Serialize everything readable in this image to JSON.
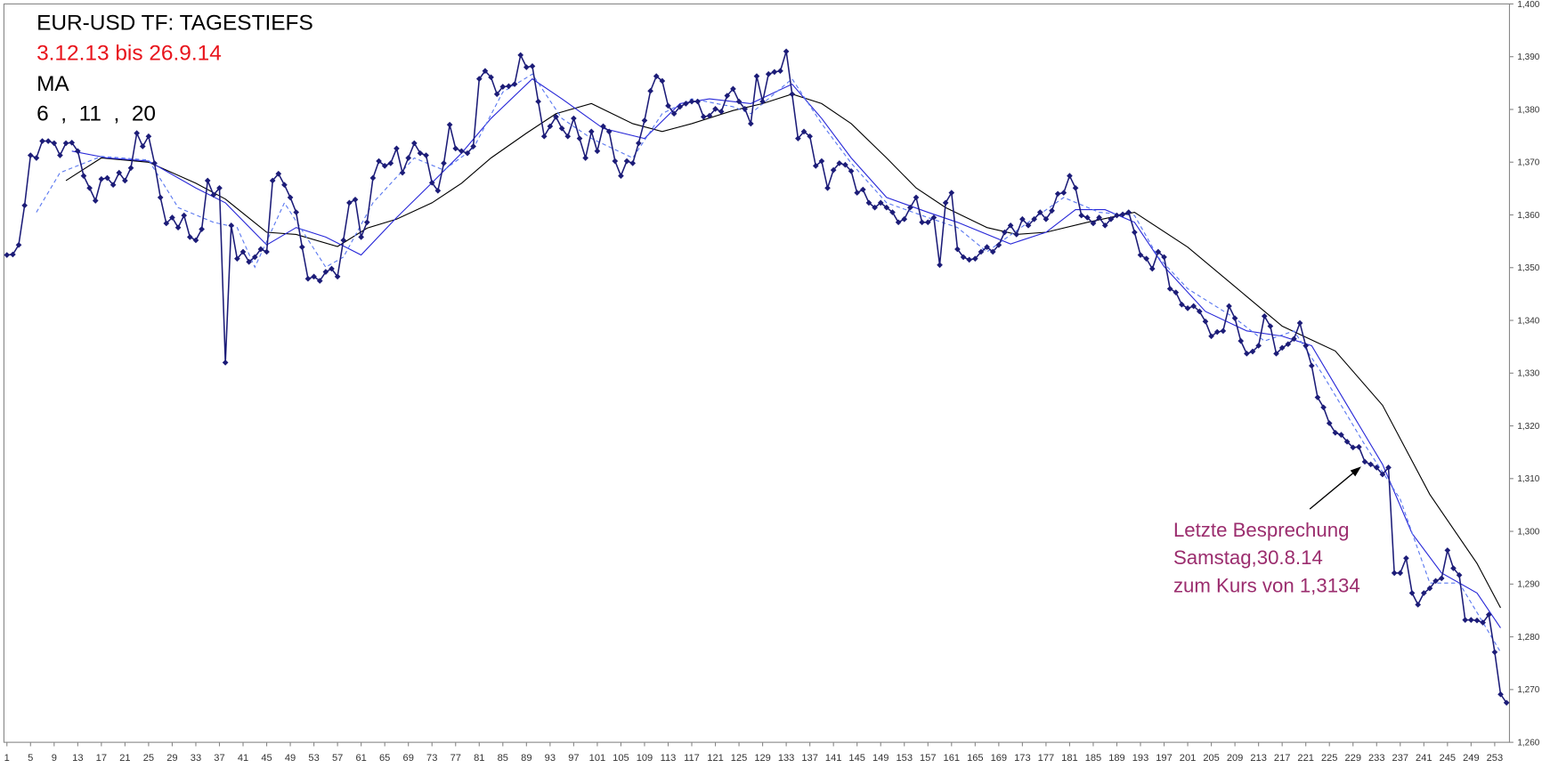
{
  "chart_data": {
    "type": "line",
    "title": "EUR-USD TF: TAGESTIEFS",
    "subtitle": "3.12.13 bis 26.9.14",
    "notes": [
      "MA",
      "6  ,  11  ,  20"
    ],
    "annotation": [
      "Letzte Besprechung",
      "Samstag,30.8.14",
      "zum Kurs von 1,3134"
    ],
    "xlim": [
      0.5,
      255.5
    ],
    "xticks": [
      1,
      5,
      9,
      13,
      17,
      21,
      25,
      29,
      33,
      37,
      41,
      45,
      49,
      53,
      57,
      61,
      65,
      69,
      73,
      77,
      81,
      85,
      89,
      93,
      97,
      101,
      105,
      109,
      113,
      117,
      121,
      125,
      129,
      133,
      137,
      141,
      145,
      149,
      153,
      157,
      161,
      165,
      169,
      173,
      177,
      181,
      185,
      189,
      193,
      197,
      201,
      205,
      209,
      213,
      217,
      221,
      225,
      229,
      233,
      237,
      241,
      245,
      249,
      253
    ],
    "ylim": [
      1.26,
      1.4
    ],
    "yticks": [
      {
        "value": 1.26,
        "label": "1,260"
      },
      {
        "value": 1.27,
        "label": "1,270"
      },
      {
        "value": 1.28,
        "label": "1,280"
      },
      {
        "value": 1.29,
        "label": "1,290"
      },
      {
        "value": 1.3,
        "label": "1,300"
      },
      {
        "value": 1.31,
        "label": "1,310"
      },
      {
        "value": 1.32,
        "label": "1,320"
      },
      {
        "value": 1.33,
        "label": "1,330"
      },
      {
        "value": 1.34,
        "label": "1,340"
      },
      {
        "value": 1.35,
        "label": "1,350"
      },
      {
        "value": 1.36,
        "label": "1,360"
      },
      {
        "value": 1.37,
        "label": "1,370"
      },
      {
        "value": 1.38,
        "label": "1,380"
      },
      {
        "value": 1.39,
        "label": "1,390"
      },
      {
        "value": 1.4,
        "label": "1,400"
      }
    ],
    "series": [
      {
        "color": "#1c1c78",
        "marker": "diamond",
        "style": "solid",
        "x": [
          1,
          2,
          3,
          4,
          5,
          6,
          7,
          8,
          9,
          10,
          11,
          12,
          13,
          14,
          15,
          16,
          17,
          18,
          19,
          20,
          21,
          22,
          23,
          24,
          25,
          26,
          27,
          28,
          29,
          30,
          31,
          32,
          33,
          34,
          35,
          36,
          37,
          38,
          39,
          40,
          41,
          42,
          43,
          44,
          45,
          46,
          47,
          48,
          49,
          50,
          51,
          52,
          53,
          54,
          55,
          56,
          57,
          58,
          59,
          60,
          61,
          62,
          63,
          64,
          65,
          66,
          67,
          68,
          69,
          70,
          71,
          72,
          73,
          74,
          75,
          76,
          77,
          78,
          79,
          80,
          81,
          82,
          83,
          84,
          85,
          86,
          87,
          88,
          89,
          90,
          91,
          92,
          93,
          94,
          95,
          96,
          97,
          98,
          99,
          100,
          101,
          102,
          103,
          104,
          105,
          106,
          107,
          108,
          109,
          110,
          111,
          112,
          113,
          114,
          115,
          116,
          117,
          118,
          119,
          120,
          121,
          122,
          123,
          124,
          125,
          126,
          127,
          128,
          129,
          130,
          131,
          132,
          133,
          134,
          135,
          136,
          137,
          138,
          139,
          140,
          141,
          142,
          143,
          144,
          145,
          146,
          147,
          148,
          149,
          150,
          151,
          152,
          153,
          154,
          155,
          156,
          157,
          158,
          159,
          160,
          161,
          162,
          163,
          164,
          165,
          166,
          167,
          168,
          169,
          170,
          171,
          172,
          173,
          174,
          175,
          176,
          177,
          178,
          179,
          180,
          181,
          182,
          183,
          184,
          185,
          186,
          187,
          188,
          189,
          190,
          191,
          192,
          193,
          194,
          195,
          196,
          197,
          198,
          199,
          200,
          201,
          202,
          203,
          204,
          205,
          206,
          207,
          208,
          209,
          210,
          211,
          212,
          213,
          214,
          215,
          216,
          217,
          218,
          219,
          220,
          221,
          222,
          223,
          224,
          225,
          226,
          227,
          228,
          229,
          230,
          231,
          232,
          233,
          234,
          235,
          236,
          237,
          238,
          239,
          240,
          241,
          242,
          243,
          244,
          245,
          246,
          247,
          248,
          249,
          250,
          251,
          252,
          253,
          254,
          255
        ],
        "values": [
          1.3524,
          1.3525,
          1.3543,
          1.3618,
          1.3713,
          1.3708,
          1.374,
          1.374,
          1.3736,
          1.3713,
          1.3736,
          1.3737,
          1.3721,
          1.3674,
          1.3651,
          1.3627,
          1.3668,
          1.367,
          1.3657,
          1.368,
          1.3665,
          1.3689,
          1.3755,
          1.373,
          1.3749,
          1.3698,
          1.3633,
          1.3584,
          1.3595,
          1.3576,
          1.3599,
          1.3558,
          1.3552,
          1.3573,
          1.3665,
          1.3638,
          1.3651,
          1.332,
          1.358,
          1.3517,
          1.353,
          1.3511,
          1.352,
          1.3535,
          1.353,
          1.3665,
          1.3678,
          1.3657,
          1.3633,
          1.3605,
          1.3539,
          1.3479,
          1.3483,
          1.3475,
          1.3492,
          1.3498,
          1.3483,
          1.3552,
          1.3623,
          1.3629,
          1.3558,
          1.3586,
          1.367,
          1.3702,
          1.3693,
          1.3698,
          1.3726,
          1.368,
          1.3708,
          1.3736,
          1.3717,
          1.3713,
          1.3661,
          1.3646,
          1.3698,
          1.3771,
          1.3726,
          1.3721,
          1.3717,
          1.373,
          1.3858,
          1.3873,
          1.3861,
          1.3829,
          1.3843,
          1.3844,
          1.3848,
          1.3903,
          1.388,
          1.3882,
          1.3815,
          1.3749,
          1.3768,
          1.3786,
          1.3764,
          1.3749,
          1.3783,
          1.3745,
          1.3708,
          1.3758,
          1.3721,
          1.3768,
          1.3758,
          1.3702,
          1.3674,
          1.3702,
          1.3698,
          1.3736,
          1.3779,
          1.3835,
          1.3863,
          1.3854,
          1.3807,
          1.3792,
          1.3805,
          1.3811,
          1.3815,
          1.3815,
          1.3786,
          1.3788,
          1.3801,
          1.3796,
          1.3826,
          1.3839,
          1.3815,
          1.3801,
          1.3773,
          1.3863,
          1.3815,
          1.3867,
          1.3871,
          1.3873,
          1.391,
          1.3829,
          1.3745,
          1.3758,
          1.3749,
          1.3693,
          1.3702,
          1.3651,
          1.3685,
          1.3698,
          1.3695,
          1.3683,
          1.3642,
          1.3648,
          1.3623,
          1.3614,
          1.3623,
          1.3614,
          1.3605,
          1.3586,
          1.3592,
          1.3614,
          1.3633,
          1.3586,
          1.3586,
          1.3595,
          1.3505,
          1.3623,
          1.3642,
          1.3535,
          1.352,
          1.3515,
          1.3517,
          1.353,
          1.3539,
          1.353,
          1.3543,
          1.3567,
          1.358,
          1.3563,
          1.3592,
          1.358,
          1.3592,
          1.3605,
          1.3592,
          1.3608,
          1.364,
          1.3642,
          1.3674,
          1.3651,
          1.3599,
          1.3595,
          1.3584,
          1.3595,
          1.358,
          1.3592,
          1.3599,
          1.3601,
          1.3605,
          1.3567,
          1.3524,
          1.3517,
          1.3498,
          1.353,
          1.352,
          1.346,
          1.3453,
          1.343,
          1.3423,
          1.3427,
          1.3417,
          1.3398,
          1.337,
          1.3378,
          1.338,
          1.3427,
          1.3404,
          1.3361,
          1.3337,
          1.3341,
          1.3352,
          1.3408,
          1.3389,
          1.3337,
          1.3348,
          1.3355,
          1.3365,
          1.3395,
          1.3352,
          1.3314,
          1.3254,
          1.3235,
          1.3205,
          1.3187,
          1.3183,
          1.317,
          1.3159,
          1.316,
          1.3132,
          1.3127,
          1.3121,
          1.3108,
          1.3121,
          1.2921,
          1.2921,
          1.2949,
          1.2883,
          1.2861,
          1.2883,
          1.2892,
          1.2906,
          1.2911,
          1.2964,
          1.293,
          1.2917,
          1.2832,
          1.2832,
          1.2831,
          1.2827,
          1.2842,
          1.2771,
          1.2691,
          1.2675
        ]
      },
      {
        "color": "#5a78f0",
        "style": "dashed",
        "x": [
          6,
          10,
          17,
          25,
          30,
          36,
          40,
          43,
          48,
          55,
          58,
          63,
          70,
          75,
          80,
          85,
          90,
          95,
          100,
          107,
          112,
          117,
          124,
          127,
          134,
          139,
          144,
          150,
          157,
          162,
          167,
          174,
          180,
          186,
          192,
          196,
          201,
          209,
          214,
          219,
          224,
          231,
          237,
          242,
          247,
          250,
          254
        ],
        "values": [
          1.3605,
          1.368,
          1.3711,
          1.3704,
          1.3614,
          1.3586,
          1.3576,
          1.3501,
          1.3623,
          1.3501,
          1.352,
          1.3623,
          1.3708,
          1.3685,
          1.3726,
          1.3833,
          1.3867,
          1.3783,
          1.3745,
          1.3708,
          1.3792,
          1.382,
          1.3805,
          1.3792,
          1.3858,
          1.3773,
          1.3698,
          1.3623,
          1.3595,
          1.3576,
          1.353,
          1.3586,
          1.3633,
          1.3605,
          1.3599,
          1.352,
          1.346,
          1.3404,
          1.3361,
          1.338,
          1.3295,
          1.3164,
          1.3061,
          1.2902,
          1.2902,
          1.2846,
          1.2771
        ]
      },
      {
        "color": "#2828d8",
        "style": "solid",
        "x": [
          12,
          18,
          25,
          33,
          38,
          45,
          50,
          55,
          61,
          67,
          73,
          78,
          83,
          90,
          95,
          102,
          109,
          115,
          120,
          127,
          134,
          139,
          144,
          150,
          157,
          162,
          171,
          177,
          182,
          187,
          192,
          197,
          204,
          211,
          217,
          222,
          227,
          234,
          239,
          244,
          250,
          254
        ],
        "values": [
          1.3721,
          1.3708,
          1.3702,
          1.3651,
          1.3623,
          1.3543,
          1.3576,
          1.3558,
          1.3524,
          1.3595,
          1.3661,
          1.3717,
          1.3783,
          1.3858,
          1.382,
          1.3764,
          1.3745,
          1.3811,
          1.382,
          1.3811,
          1.3848,
          1.3783,
          1.3708,
          1.3633,
          1.3605,
          1.3586,
          1.3545,
          1.3567,
          1.361,
          1.361,
          1.3586,
          1.3502,
          1.3417,
          1.338,
          1.337,
          1.3352,
          1.3258,
          1.3127,
          1.2996,
          1.2921,
          1.2883,
          1.2817
        ]
      },
      {
        "color": "#000000",
        "style": "solid",
        "x": [
          11,
          17,
          25,
          33,
          38,
          45,
          50,
          57,
          62,
          67,
          73,
          78,
          83,
          89,
          94,
          100,
          107,
          112,
          117,
          124,
          129,
          134,
          139,
          144,
          150,
          155,
          160,
          167,
          172,
          177,
          184,
          192,
          201,
          209,
          217,
          226,
          234,
          242,
          250,
          254
        ],
        "values": [
          1.3665,
          1.3708,
          1.37,
          1.366,
          1.363,
          1.3567,
          1.3563,
          1.354,
          1.3575,
          1.3592,
          1.3623,
          1.366,
          1.3708,
          1.3755,
          1.3792,
          1.3811,
          1.3773,
          1.3758,
          1.3773,
          1.3798,
          1.3811,
          1.3829,
          1.3811,
          1.3773,
          1.3708,
          1.3651,
          1.3614,
          1.3576,
          1.3563,
          1.3567,
          1.3586,
          1.3605,
          1.3539,
          1.3464,
          1.3389,
          1.3342,
          1.3239,
          1.307,
          1.2939,
          1.2855
        ]
      }
    ]
  }
}
